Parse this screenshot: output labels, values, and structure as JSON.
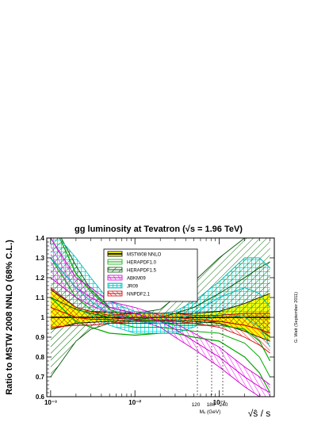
{
  "chart_data": {
    "type": "line",
    "title": "gg luminosity at Tevatron (√s = 1.96 TeV)",
    "ylabel": "Ratio to MSTW 2008 NNLO (68% C.L.)",
    "xlabel": "√ŝ / s",
    "xscale": "log",
    "xlim": [
      0.0009,
      0.45
    ],
    "ylim": [
      0.6,
      1.4
    ],
    "grid": false,
    "legend_position": "top-left",
    "x_tick_labels": [
      "10⁻³",
      "10⁻²",
      "10⁻¹"
    ],
    "y_tick_labels": [
      "0.6",
      "0.7",
      "0.8",
      "0.9",
      "1",
      "1.1",
      "1.2",
      "1.3",
      "1.4"
    ],
    "mass_marker_labels": [
      "120",
      "180",
      "240"
    ],
    "mass_axis_label": "Mₓ (GeV)",
    "author_note": "G. Watt   (September 2011)",
    "x": [
      0.001,
      0.002,
      0.003,
      0.005,
      0.01,
      0.02,
      0.03,
      0.05,
      0.1,
      0.2,
      0.3,
      0.4
    ],
    "series": [
      {
        "name": "MSTW08 NNLO",
        "style": "band",
        "color": "#ffff00",
        "edge": "#000000",
        "values": [
          1.0,
          1.0,
          1.0,
          1.0,
          1.0,
          1.0,
          1.0,
          1.0,
          1.0,
          1.0,
          1.0,
          1.0
        ],
        "lower": [
          0.94,
          0.97,
          0.975,
          0.98,
          0.985,
          0.985,
          0.985,
          0.98,
          0.97,
          0.93,
          0.9,
          0.88
        ],
        "upper": [
          1.14,
          1.05,
          1.03,
          1.025,
          1.02,
          1.02,
          1.02,
          1.02,
          1.03,
          1.07,
          1.1,
          1.12
        ]
      },
      {
        "name": "HERAPDF1.0",
        "style": "band",
        "color": "#00cc00",
        "edge": "#00aa00",
        "values": [
          1.3,
          1.1,
          1.04,
          0.98,
          0.95,
          0.95,
          0.94,
          0.93,
          0.92,
          0.87,
          0.8,
          0.7
        ],
        "lower": [
          1.1,
          0.98,
          0.95,
          0.92,
          0.91,
          0.92,
          0.92,
          0.9,
          0.88,
          0.8,
          0.72,
          0.62
        ],
        "upper": [
          1.5,
          1.22,
          1.13,
          1.04,
          0.99,
          0.98,
          0.96,
          0.96,
          0.96,
          0.94,
          0.88,
          0.78
        ]
      },
      {
        "name": "HERAPDF1.5",
        "style": "hatch",
        "color": "#006600",
        "edge": "#005500",
        "values": [
          1.1,
          1.04,
          1.02,
          1.0,
          0.99,
          1.0,
          1.02,
          1.05,
          1.12,
          1.2,
          1.25,
          1.28
        ],
        "lower": [
          0.7,
          0.88,
          0.94,
          0.97,
          0.97,
          0.97,
          0.97,
          0.97,
          0.98,
          0.96,
          0.94,
          0.9
        ],
        "upper": [
          1.5,
          1.26,
          1.14,
          1.05,
          1.02,
          1.04,
          1.1,
          1.18,
          1.3,
          1.4,
          1.45,
          1.5
        ]
      },
      {
        "name": "ABKM09",
        "style": "hatch",
        "color": "#ff00ff",
        "edge": "#cc00cc",
        "values": [
          1.3,
          1.15,
          1.1,
          1.05,
          1.02,
          0.98,
          0.94,
          0.88,
          0.8,
          0.7,
          0.65,
          0.62
        ],
        "lower": [
          1.2,
          1.1,
          1.06,
          1.02,
          0.99,
          0.95,
          0.9,
          0.84,
          0.75,
          0.65,
          0.6,
          0.58
        ],
        "upper": [
          1.4,
          1.2,
          1.15,
          1.08,
          1.05,
          1.01,
          0.97,
          0.92,
          0.85,
          0.75,
          0.7,
          0.66
        ]
      },
      {
        "name": "JR09",
        "style": "cross",
        "color": "#00e5e5",
        "edge": "#00bbbb",
        "values": [
          1.3,
          1.15,
          1.08,
          1.02,
          0.98,
          0.97,
          0.98,
          1.02,
          1.1,
          1.15,
          1.12,
          1.05
        ],
        "lower": [
          1.15,
          1.05,
          1.01,
          0.96,
          0.92,
          0.92,
          0.92,
          0.95,
          1.02,
          1.0,
          0.95,
          0.85
        ],
        "upper": [
          1.45,
          1.3,
          1.2,
          1.08,
          1.03,
          1.02,
          1.03,
          1.08,
          1.18,
          1.3,
          1.3,
          1.25
        ]
      },
      {
        "name": "NNPDF2.1",
        "style": "hatch",
        "color": "#ff0000",
        "edge": "#cc0000",
        "values": [
          1.05,
          1.0,
          0.99,
          0.99,
          1.0,
          1.0,
          1.0,
          0.99,
          0.98,
          0.96,
          0.94,
          0.92
        ],
        "lower": [
          0.95,
          0.96,
          0.96,
          0.97,
          0.98,
          0.98,
          0.98,
          0.97,
          0.95,
          0.9,
          0.86,
          0.82
        ],
        "upper": [
          1.15,
          1.05,
          1.03,
          1.01,
          1.02,
          1.02,
          1.02,
          1.01,
          1.01,
          1.02,
          1.02,
          1.02
        ]
      }
    ]
  }
}
